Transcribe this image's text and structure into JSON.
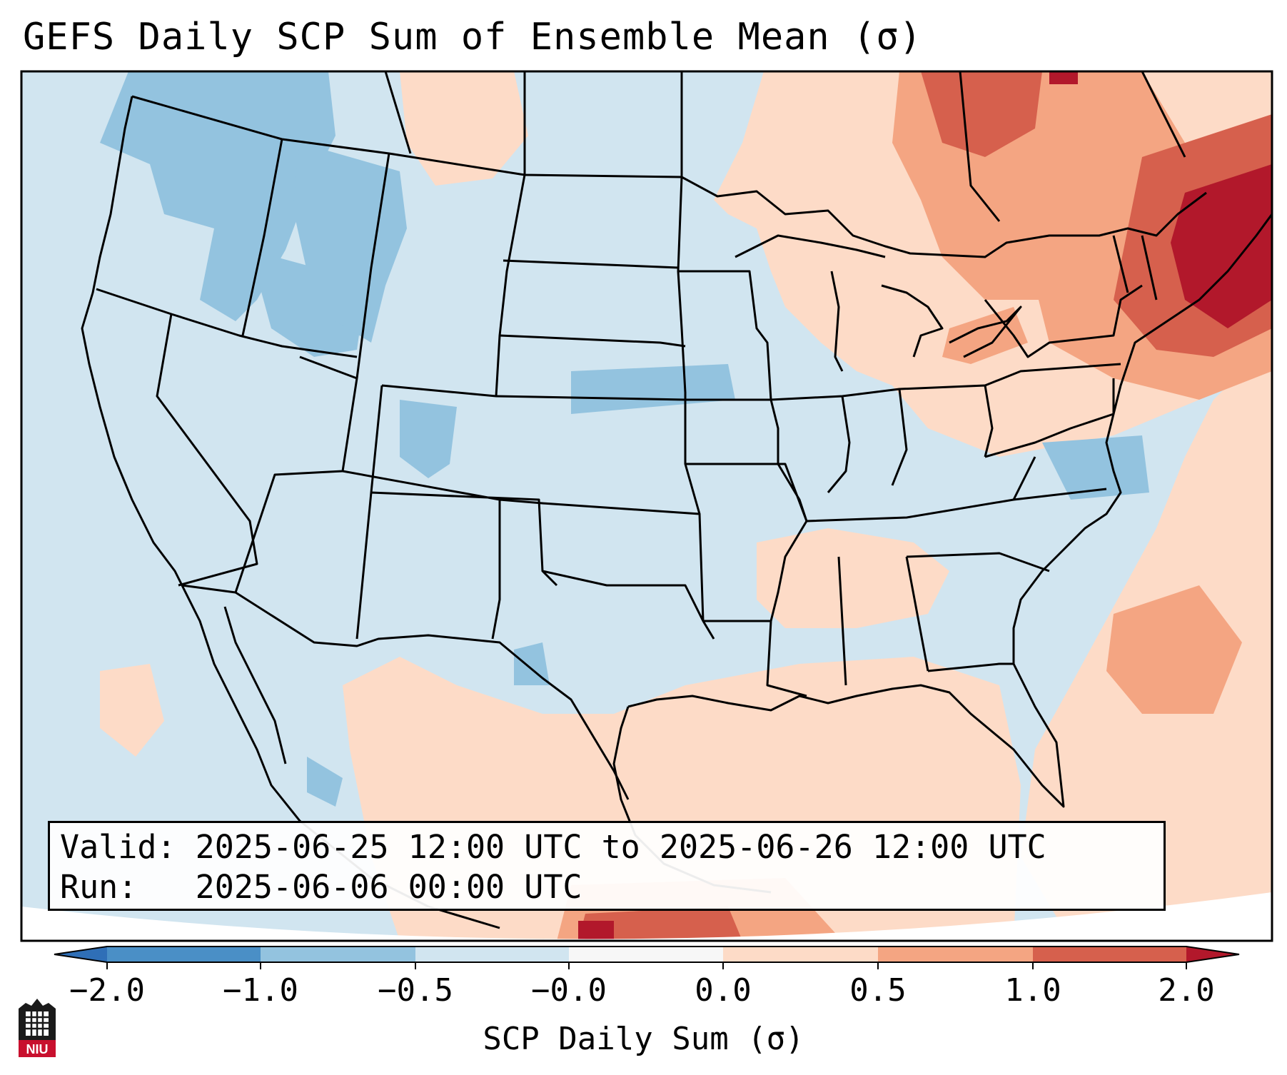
{
  "title": "GEFS Daily SCP Sum of Ensemble Mean (σ)",
  "info": {
    "valid_label": "Valid:",
    "valid_value": "2025-06-25 12:00 UTC to 2025-06-26 12:00 UTC",
    "run_label": "Run:",
    "run_value": "2025-06-06 00:00 UTC"
  },
  "colorbar": {
    "label": "SCP Daily Sum (σ)",
    "ticks": [
      "−2.0",
      "−1.0",
      "−0.5",
      "−0.0",
      "0.0",
      "0.5",
      "1.0",
      "2.0"
    ],
    "bins": [
      {
        "name": "< -2.0",
        "color": "#2f6fb7"
      },
      {
        "name": "-2.0 to -1.0",
        "color": "#4a8fc6"
      },
      {
        "name": "-1.0 to -0.5",
        "color": "#93c3df"
      },
      {
        "name": "-0.5 to -0.0",
        "color": "#d1e5f0"
      },
      {
        "name": "-0.0 to 0.0",
        "color": "#f7f7f7"
      },
      {
        "name": "0.0 to 0.5",
        "color": "#fddbc7"
      },
      {
        "name": "0.5 to 1.0",
        "color": "#f4a582"
      },
      {
        "name": "1.0 to 2.0",
        "color": "#d6604d"
      },
      {
        "name": "> 2.0",
        "color": "#b2182b"
      }
    ]
  },
  "logo": {
    "text": "NIU"
  }
}
